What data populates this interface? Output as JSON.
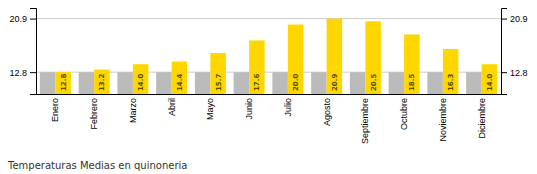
{
  "chart_data": {
    "type": "bar",
    "title": "Temperaturas Medias en quinoneria",
    "categories": [
      "Enero",
      "Febrero",
      "Marzo",
      "Abril",
      "Mayo",
      "Junio",
      "Julio",
      "Agosto",
      "Septiembre",
      "Octubre",
      "Noviembre",
      "Diciembre"
    ],
    "series": [
      {
        "color": "#BBBBBB",
        "values": [
          12.8,
          12.8,
          12.8,
          12.8,
          12.8,
          12.8,
          12.8,
          12.8,
          12.8,
          12.8,
          12.8,
          12.8
        ]
      },
      {
        "color": "#FFD700",
        "values": [
          12.8,
          13.2,
          14.0,
          14.4,
          15.7,
          17.6,
          20.0,
          20.9,
          20.5,
          18.5,
          16.3,
          14.0
        ],
        "data_labels": true,
        "value_labels": [
          "12.8",
          "13.2",
          "14.0",
          "14.4",
          "15.7",
          "17.6",
          "20.0",
          "20.9",
          "20.5",
          "18.5",
          "16.3",
          "14.0"
        ]
      }
    ],
    "ylim": [
      9.5,
      22.5
    ],
    "yticks": [
      12.8,
      20.9
    ],
    "y2lim": [
      9.5,
      22.5
    ],
    "y2ticks": [
      12.8,
      20.9
    ],
    "grid": true
  }
}
